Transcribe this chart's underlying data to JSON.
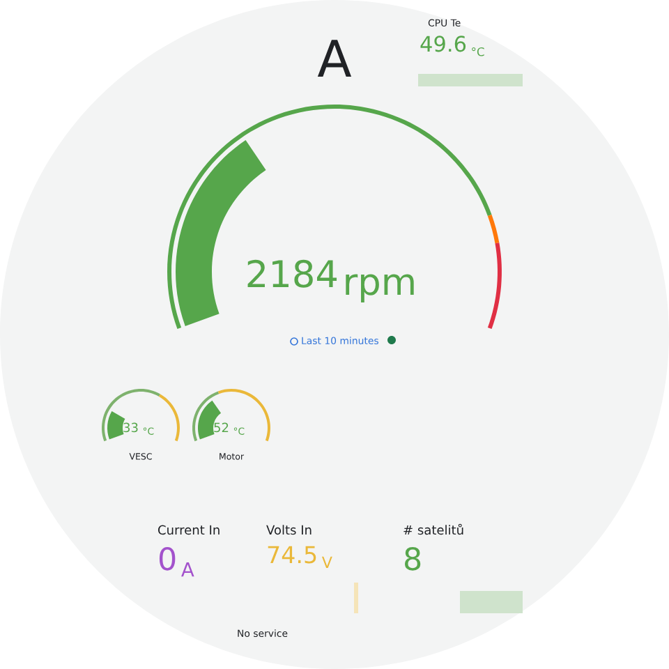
{
  "chart_data": [
    {
      "type": "other",
      "title": "A",
      "values": [
        2184
      ],
      "data_labels": true,
      "annotations": [
        "rpm",
        "Last 10 minutes"
      ],
      "color": "#56a64b"
    },
    {
      "type": "other",
      "title": "CPU Te",
      "values": [
        49.6
      ],
      "data_labels": true,
      "annotations": [
        "°C"
      ],
      "color": "#56a64b"
    },
    {
      "type": "other",
      "values": [
        33
      ],
      "data_labels": true,
      "annotations": [
        "°C",
        "VESC"
      ],
      "color": "#56a64b"
    },
    {
      "type": "other",
      "values": [
        52
      ],
      "data_labels": true,
      "annotations": [
        "°C",
        "Motor"
      ],
      "color": "#56a64b"
    },
    {
      "type": "other",
      "title": "Current In",
      "values": [
        0
      ],
      "data_labels": true,
      "annotations": [
        "A"
      ],
      "color": "#a352cc"
    },
    {
      "type": "other",
      "title": "Volts In",
      "values": [
        74.5
      ],
      "data_labels": true,
      "annotations": [
        "V",
        "No service"
      ],
      "color": "#eab839"
    },
    {
      "type": "other",
      "title": "# satelitů",
      "values": [
        8
      ],
      "data_labels": true,
      "color": "#56a64b"
    }
  ]
}
